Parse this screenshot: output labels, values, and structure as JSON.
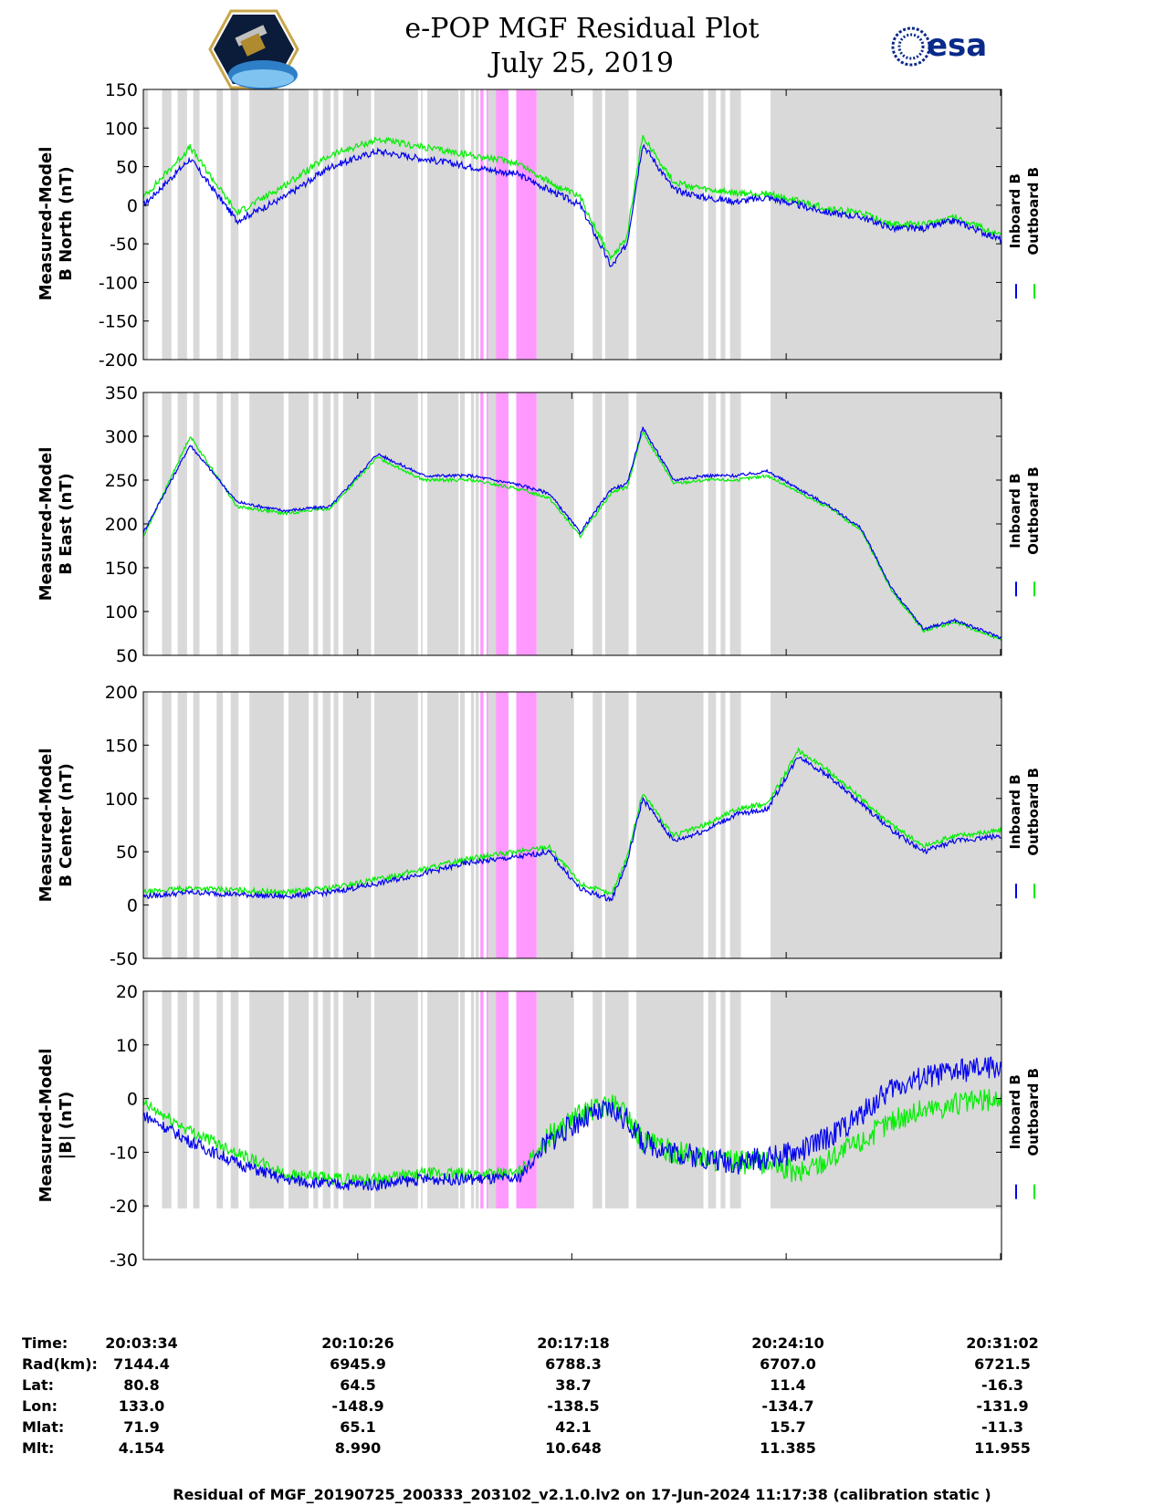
{
  "header": {
    "title_line1": "e-POP MGF Residual Plot",
    "title_line2": "July 25, 2019",
    "logo_left_name": "cassiope-mission-logo",
    "logo_right_text": "esa"
  },
  "colors": {
    "inboard": "#0000ee",
    "outboard": "#00ee00",
    "gray_band": "#d9d9d9",
    "pink_band": "#ff99ff"
  },
  "legend": {
    "inboard": "Inboard B",
    "outboard": "Outboard B"
  },
  "chart_data": [
    {
      "type": "line",
      "ylabel_line1": "Measured-Model",
      "ylabel_line2": "B North (nT)",
      "ylim": [
        -200,
        150
      ],
      "yticks": [
        150,
        100,
        50,
        0,
        -50,
        -100,
        -150,
        -200
      ],
      "x_minutes": [
        0,
        1.5,
        3,
        4.5,
        6,
        7.5,
        9,
        10.5,
        12,
        13,
        14,
        15,
        15.5,
        16,
        17,
        18,
        19,
        20,
        21,
        22,
        23,
        24,
        25,
        26,
        27.5
      ],
      "series": [
        {
          "name": "Inboard B",
          "values": [
            0,
            60,
            -20,
            10,
            50,
            70,
            60,
            50,
            40,
            20,
            0,
            -80,
            -50,
            80,
            20,
            10,
            5,
            10,
            0,
            -10,
            -15,
            -30,
            -30,
            -20,
            -45
          ]
        },
        {
          "name": "Outboard B",
          "values": [
            10,
            75,
            -10,
            25,
            65,
            85,
            75,
            65,
            55,
            30,
            10,
            -70,
            -40,
            90,
            30,
            20,
            15,
            15,
            5,
            -5,
            -10,
            -25,
            -25,
            -15,
            -40
          ]
        }
      ]
    },
    {
      "type": "line",
      "ylabel_line1": "Measured-Model",
      "ylabel_line2": "B East (nT)",
      "ylim": [
        50,
        350
      ],
      "yticks": [
        350,
        300,
        250,
        200,
        150,
        100,
        50
      ],
      "x_minutes": [
        0,
        1.5,
        3,
        4.5,
        6,
        7.5,
        9,
        10.5,
        12,
        13,
        14,
        15,
        15.5,
        16,
        17,
        18,
        19,
        20,
        21,
        22,
        23,
        24,
        25,
        26,
        27.5
      ],
      "series": [
        {
          "name": "Inboard B",
          "values": [
            190,
            290,
            225,
            215,
            220,
            280,
            255,
            255,
            245,
            235,
            190,
            240,
            245,
            310,
            250,
            255,
            255,
            260,
            240,
            220,
            195,
            125,
            80,
            90,
            70
          ]
        },
        {
          "name": "Outboard B",
          "values": [
            185,
            300,
            220,
            212,
            218,
            276,
            250,
            250,
            240,
            230,
            186,
            236,
            242,
            305,
            246,
            250,
            250,
            255,
            236,
            218,
            193,
            123,
            78,
            88,
            68
          ]
        }
      ]
    },
    {
      "type": "line",
      "ylabel_line1": "Measured-Model",
      "ylabel_line2": "B Center (nT)",
      "ylim": [
        -50,
        200
      ],
      "yticks": [
        200,
        150,
        100,
        50,
        0,
        -50
      ],
      "x_minutes": [
        0,
        1.5,
        3,
        4.5,
        6,
        7.5,
        9,
        10.5,
        12,
        13,
        14,
        15,
        15.5,
        16,
        17,
        18,
        19,
        20,
        21,
        22,
        23,
        24,
        25,
        26,
        27.5
      ],
      "series": [
        {
          "name": "Inboard B",
          "values": [
            8,
            12,
            10,
            8,
            12,
            20,
            30,
            40,
            45,
            50,
            15,
            5,
            40,
            100,
            60,
            70,
            85,
            90,
            140,
            120,
            95,
            70,
            50,
            60,
            65
          ]
        },
        {
          "name": "Outboard B",
          "values": [
            12,
            16,
            14,
            12,
            16,
            24,
            34,
            44,
            50,
            55,
            20,
            10,
            45,
            105,
            65,
            75,
            90,
            95,
            145,
            125,
            100,
            75,
            55,
            65,
            70
          ]
        }
      ]
    },
    {
      "type": "line",
      "ylabel_line1": "Measured-Model",
      "ylabel_line2": "|B| (nT)",
      "ylim": [
        -30,
        20
      ],
      "yticks": [
        20,
        10,
        0,
        -10,
        -20,
        -30
      ],
      "x_minutes": [
        0,
        1.5,
        3,
        4.5,
        6,
        7.5,
        9,
        10.5,
        12,
        13,
        14,
        15,
        15.5,
        16,
        17,
        18,
        19,
        20,
        21,
        22,
        23,
        24,
        25,
        26,
        27.5
      ],
      "series": [
        {
          "name": "Inboard B",
          "values": [
            -3,
            -8,
            -12,
            -15,
            -16,
            -16,
            -15,
            -15,
            -15,
            -8,
            -4,
            -2,
            -4,
            -8,
            -10,
            -11,
            -12,
            -11,
            -10,
            -7,
            -3,
            2,
            4,
            5,
            6
          ]
        },
        {
          "name": "Outboard B",
          "values": [
            -1,
            -6,
            -10,
            -14,
            -15,
            -15,
            -14,
            -14,
            -14,
            -7,
            -3,
            -1,
            -3,
            -8,
            -10,
            -11,
            -12,
            -12,
            -14,
            -11,
            -8,
            -4,
            -2,
            -1,
            0
          ]
        }
      ]
    }
  ],
  "bands": {
    "gray": [
      [
        0,
        0.15
      ],
      [
        0.6,
        0.9
      ],
      [
        1.1,
        1.4
      ],
      [
        1.6,
        1.8
      ],
      [
        2.35,
        2.55
      ],
      [
        2.8,
        3.05
      ],
      [
        3.4,
        4.5
      ],
      [
        4.65,
        5.3
      ],
      [
        5.45,
        5.6
      ],
      [
        5.75,
        6.0
      ],
      [
        6.1,
        6.25
      ],
      [
        6.4,
        7.3
      ],
      [
        7.4,
        8.8
      ],
      [
        8.9,
        8.95
      ],
      [
        9.1,
        10.1
      ],
      [
        10.15,
        10.3
      ],
      [
        10.5,
        10.6
      ],
      [
        10.65,
        10.75
      ],
      [
        11.05,
        11.3
      ],
      [
        11.3,
        11.6
      ],
      [
        12.6,
        13.8
      ],
      [
        14.4,
        14.7
      ],
      [
        14.8,
        15.55
      ],
      [
        15.8,
        17.95
      ],
      [
        18.1,
        18.35
      ],
      [
        18.5,
        18.65
      ],
      [
        18.8,
        19.15
      ],
      [
        20.1,
        27.5
      ]
    ],
    "pink": [
      [
        10.8,
        10.9
      ],
      [
        11.0,
        11.05
      ],
      [
        11.3,
        11.7
      ],
      [
        11.95,
        12.6
      ]
    ]
  },
  "x_axis": {
    "tick_minutes": [
      0,
      6.87,
      13.73,
      20.6,
      27.47
    ]
  },
  "info_table": {
    "row_labels": [
      "Time:",
      "Rad(km):",
      "Lat:",
      "Lon:",
      "Mlat:",
      "Mlt:"
    ],
    "columns": [
      [
        "20:03:34",
        "7144.4",
        "80.8",
        "133.0",
        "71.9",
        "4.154"
      ],
      [
        "20:10:26",
        "6945.9",
        "64.5",
        "-148.9",
        "65.1",
        "8.990"
      ],
      [
        "20:17:18",
        "6788.3",
        "38.7",
        "-138.5",
        "42.1",
        "10.648"
      ],
      [
        "20:24:10",
        "6707.0",
        "11.4",
        "-134.7",
        "15.7",
        "11.385"
      ],
      [
        "20:31:02",
        "6721.5",
        "-16.3",
        "-131.9",
        "-11.3",
        "11.955"
      ]
    ]
  },
  "footer": "Residual of MGF_20190725_200333_203102_v2.1.0.lv2 on 17-Jun-2024 11:17:38 (calibration static )"
}
